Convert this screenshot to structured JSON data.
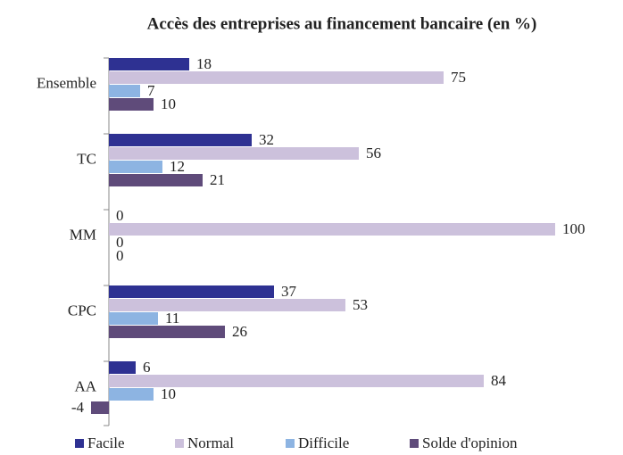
{
  "chart_data": {
    "type": "bar",
    "orientation": "horizontal",
    "title": "Accès des entreprises au financement bancaire (en %)",
    "categories": [
      "Ensemble",
      "TC",
      "MM",
      "CPC",
      "AA"
    ],
    "series": [
      {
        "name": "Facile",
        "color": "#2e3192",
        "values": [
          18,
          32,
          0,
          37,
          6
        ]
      },
      {
        "name": "Normal",
        "color": "#ccc1dc",
        "values": [
          75,
          56,
          100,
          53,
          84
        ]
      },
      {
        "name": "Difficile",
        "color": "#8db4e2",
        "values": [
          7,
          12,
          0,
          11,
          10
        ]
      },
      {
        "name": "Solde d'opinion",
        "color": "#5f4b7a",
        "values": [
          10,
          21,
          0,
          26,
          -4
        ]
      }
    ]
  }
}
